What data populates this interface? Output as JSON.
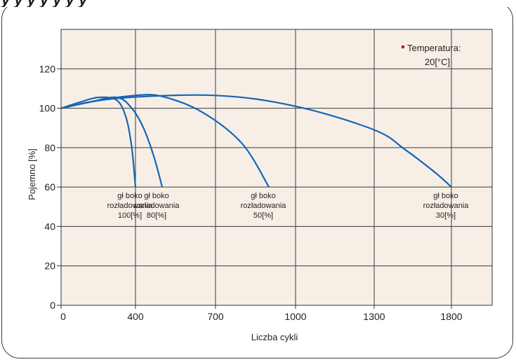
{
  "header": {
    "title_fragment": "y   y   y   y  y  y   y"
  },
  "chart_data": {
    "type": "line",
    "xlabel": "Liczba cykli",
    "ylabel": "Pojemno    [%]",
    "ylim": [
      0,
      140
    ],
    "x_ticks": [
      0,
      400,
      700,
      1000,
      1300,
      1800
    ],
    "y_ticks": [
      0,
      20,
      40,
      60,
      80,
      100,
      120
    ],
    "grid": true,
    "annotation": {
      "line1": "Temperatura:",
      "line2": "20[°C]"
    },
    "colors": {
      "series": "#1565b8",
      "background": "#f7efe6",
      "marker": "#d40000"
    },
    "series": [
      {
        "label": [
          "gł  boko",
          "rozładowania",
          "100[%]"
        ],
        "points": [
          [
            0,
            100
          ],
          [
            100,
            103
          ],
          [
            200,
            105.5
          ],
          [
            300,
            104
          ],
          [
            350,
            95
          ],
          [
            380,
            80
          ],
          [
            400,
            60
          ]
        ]
      },
      {
        "label": [
          "gł  boko",
          "rozładowania",
          "80[%]"
        ],
        "points": [
          [
            0,
            100
          ],
          [
            150,
            103
          ],
          [
            300,
            105.5
          ],
          [
            380,
            100
          ],
          [
            430,
            90
          ],
          [
            470,
            75
          ],
          [
            500,
            60
          ]
        ]
      },
      {
        "label": [
          "gł  boko",
          "rozładowania",
          "50[%]"
        ],
        "points": [
          [
            0,
            100
          ],
          [
            200,
            104
          ],
          [
            400,
            106.5
          ],
          [
            500,
            106
          ],
          [
            650,
            98
          ],
          [
            800,
            82
          ],
          [
            900,
            60
          ]
        ]
      },
      {
        "label": [
          "gł  boko",
          "rozładowania",
          "30[%]"
        ],
        "points": [
          [
            0,
            100
          ],
          [
            300,
            105
          ],
          [
            700,
            106.5
          ],
          [
            1000,
            101
          ],
          [
            1300,
            89
          ],
          [
            1500,
            79
          ],
          [
            1700,
            67
          ],
          [
            1800,
            60
          ]
        ]
      }
    ]
  }
}
